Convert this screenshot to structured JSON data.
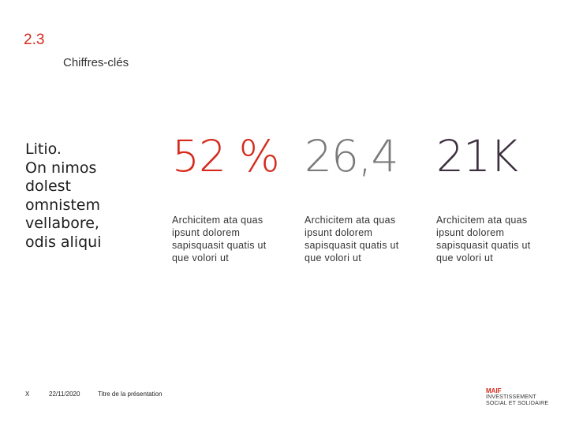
{
  "section": {
    "number": "2.3",
    "title": "Chiffres-clés"
  },
  "intro_lines": [
    "Litio.",
    "On nimos",
    "dolest",
    "omnistem",
    "vellabore,",
    "odis aliqui"
  ],
  "kpis": [
    {
      "value": "52 %",
      "color": "#d52b1e",
      "desc": [
        "Archicitem ata quas",
        "ipsunt dolorem",
        "sapisquasit quatis ut",
        "que volori ut"
      ]
    },
    {
      "value": "26,4",
      "color": "#7a7a7a",
      "desc": [
        "Archicitem ata quas",
        "ipsunt dolorem",
        "sapisquasit quatis ut",
        "que volori ut"
      ]
    },
    {
      "value": "21K",
      "color": "#3d2f3f",
      "desc": [
        "Archicitem ata quas",
        "ipsunt dolorem",
        "sapisquasit quatis ut",
        "que volori ut"
      ]
    }
  ],
  "footer": {
    "page": "X",
    "date": "22/11/2020",
    "title": "Titre de la présentation"
  },
  "logo": {
    "brand": "MAIF",
    "line1": "INVESTISSEMENT",
    "line2": "SOCIAL ET SOLIDAIRE"
  }
}
